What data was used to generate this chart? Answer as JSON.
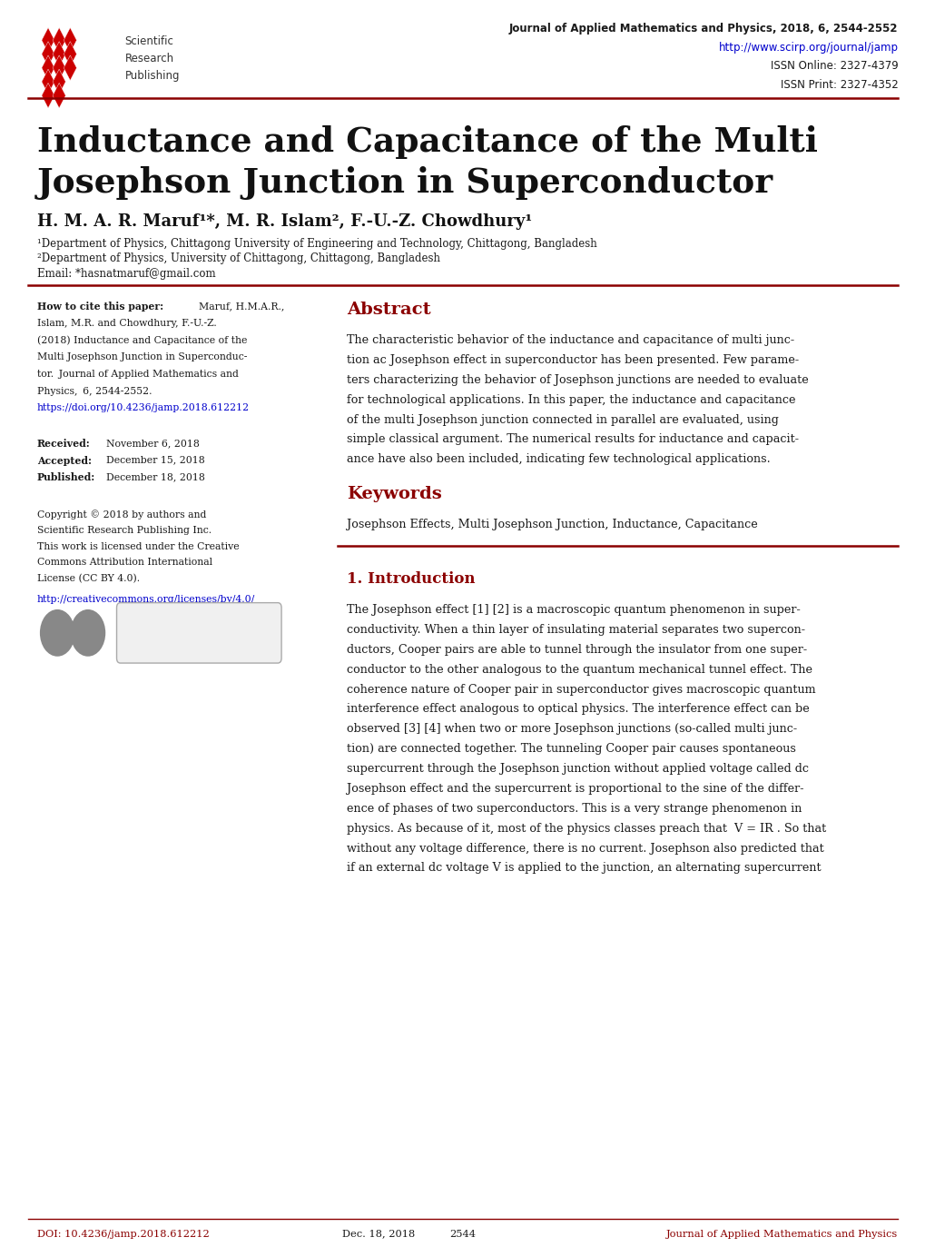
{
  "background_color": "#ffffff",
  "header_line_color": "#8B0000",
  "journal_text": "Journal of Applied Mathematics and Physics, 2018, 6, 2544-2552",
  "journal_url": "http://www.scirp.org/journal/jamp",
  "issn_online": "ISSN Online: 2327-4379",
  "issn_print": "ISSN Print: 2327-4352",
  "paper_title_line1": "Inductance and Capacitance of the Multi",
  "paper_title_line2": "Josephson Junction in Superconductor",
  "authors": "H. M. A. R. Maruf¹*, M. R. Islam², F.-U.-Z. Chowdhury¹",
  "affil1": "¹Department of Physics, Chittagong University of Engineering and Technology, Chittagong, Bangladesh",
  "affil2": "²Department of Physics, University of Chittagong, Chittagong, Bangladesh",
  "email": "Email: *hasnatmaruf@gmail.com",
  "cite_doi": "https://doi.org/10.4236/jamp.2018.612212",
  "cc_url": "http://creativecommons.org/licenses/by/4.0/",
  "abstract_title": "Abstract",
  "keywords_title": "Keywords",
  "keywords_text": "Josephson Effects, Multi Josephson Junction, Inductance, Capacitance",
  "intro_title": "1. Introduction",
  "footer_doi": "DOI: 10.4236/jamp.2018.612212",
  "footer_date": "Dec. 18, 2018",
  "footer_page": "2544",
  "footer_journal": "Journal of Applied Mathematics and Physics",
  "section_color": "#8B0000",
  "link_color": "#0000CC",
  "text_color": "#1a1a1a",
  "diamond_color": "#CC0000"
}
